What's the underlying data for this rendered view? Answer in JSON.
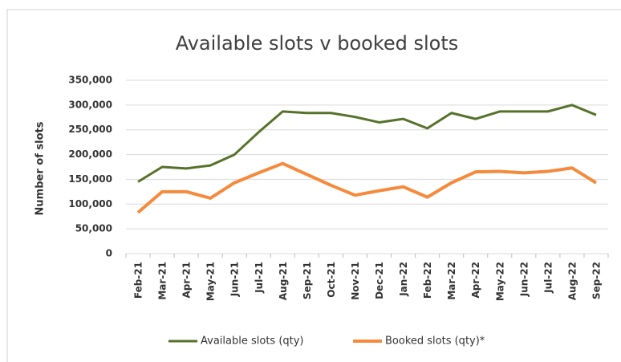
{
  "chart_data": {
    "type": "line",
    "title": "Available slots v booked slots",
    "y_label": "Number of slots",
    "categories": [
      "Feb-21",
      "Mar-21",
      "Apr-21",
      "May-21",
      "Jun-21",
      "Jul-21",
      "Aug-21",
      "Sep-21",
      "Oct-21",
      "Nov-21",
      "Dec-21",
      "Jan-22",
      "Feb-22",
      "Mar-22",
      "Apr-22",
      "May-22",
      "Jun-22",
      "Jul-22",
      "Aug-22",
      "Sep-22"
    ],
    "series": [
      {
        "name": "Available slots (qty)",
        "color": "#56722a",
        "values": [
          145000,
          175000,
          172000,
          178000,
          200000,
          245000,
          287000,
          284000,
          284000,
          276000,
          265000,
          272000,
          253000,
          284000,
          272000,
          287000,
          287000,
          287000,
          300000,
          280000
        ]
      },
      {
        "name": "Booked slots (qty)*",
        "color": "#f58a3c",
        "values": [
          83000,
          125000,
          125000,
          112000,
          143000,
          163000,
          182000,
          160000,
          138000,
          118000,
          127000,
          135000,
          114000,
          143000,
          165000,
          166000,
          163000,
          166000,
          173000,
          143000
        ]
      }
    ],
    "ylim": [
      0,
      350000
    ],
    "yticks": [
      0,
      {
        "value": 50000,
        "label": "50,000"
      },
      {
        "value": 100000,
        "label": "100,000"
      },
      {
        "value": 150000,
        "label": "150,000"
      },
      {
        "value": 200000,
        "label": "200,000"
      },
      {
        "value": 250000,
        "label": "250,000"
      },
      {
        "value": 300000,
        "label": "300,000"
      },
      {
        "value": 350000,
        "label": "350,000"
      }
    ],
    "grid": true,
    "legend": "bottom"
  }
}
